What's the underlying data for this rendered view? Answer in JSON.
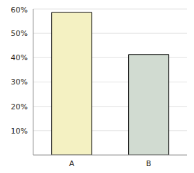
{
  "chart_data": {
    "type": "bar",
    "categories": [
      "A",
      "B"
    ],
    "values": [
      58.6,
      41.3
    ],
    "colors": [
      "#f4f1c2",
      "#d1dbd1"
    ],
    "ylim": [
      0,
      60
    ],
    "yticks": [
      {
        "value": 10,
        "label": "10%"
      },
      {
        "value": 20,
        "label": "20%"
      },
      {
        "value": 30,
        "label": "30%"
      },
      {
        "value": 40,
        "label": "40%"
      },
      {
        "value": 50,
        "label": "50%"
      },
      {
        "value": 60,
        "label": "60%"
      }
    ],
    "grid": true
  }
}
